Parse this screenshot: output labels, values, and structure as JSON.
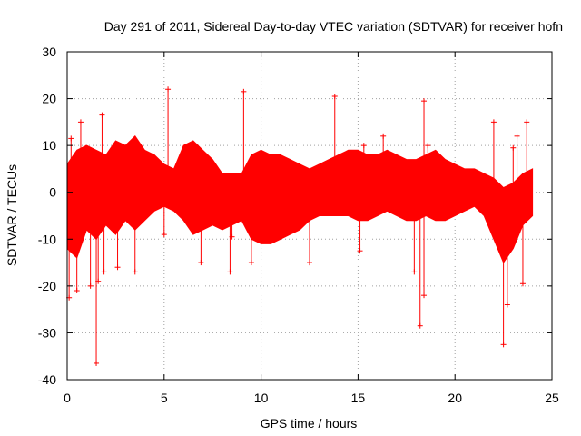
{
  "chart_data": {
    "type": "scatter",
    "title": "Day 291 of 2011, Sidereal Day-to-day VTEC variation (SDTVAR) for receiver hofn",
    "xlabel": "GPS time / hours",
    "ylabel": "SDTVAR / TECUs",
    "xlim": [
      0,
      25
    ],
    "ylim": [
      -40,
      30
    ],
    "x_ticks": [
      0,
      5,
      10,
      15,
      20,
      25
    ],
    "y_ticks": [
      -40,
      -30,
      -20,
      -10,
      0,
      10,
      20,
      30
    ],
    "grid": true,
    "series_color": "#ff0000",
    "envelope": {
      "x": [
        0.0,
        0.5,
        1.0,
        1.5,
        2.0,
        2.5,
        3.0,
        3.5,
        4.0,
        4.5,
        5.0,
        5.5,
        6.0,
        6.5,
        7.0,
        7.5,
        8.0,
        9.0,
        9.5,
        10.0,
        10.5,
        11.0,
        11.5,
        12.0,
        12.5,
        13.0,
        13.5,
        14.0,
        14.5,
        15.0,
        15.5,
        16.0,
        16.5,
        17.0,
        17.5,
        18.0,
        18.5,
        19.0,
        19.5,
        20.0,
        20.5,
        21.0,
        21.5,
        22.0,
        22.5,
        23.0,
        23.5,
        24.0
      ],
      "upper": [
        6,
        9,
        10,
        9,
        8,
        11,
        10,
        12,
        9,
        8,
        6,
        5,
        10,
        11,
        9,
        7,
        4,
        4,
        8,
        9,
        8,
        8,
        7,
        6,
        5,
        6,
        7,
        8,
        9,
        9,
        8,
        8,
        9,
        8,
        7,
        7,
        8,
        9,
        7,
        6,
        5,
        5,
        4,
        3,
        1,
        2,
        4,
        5
      ],
      "lower": [
        -12,
        -14,
        -8,
        -10,
        -7,
        -9,
        -6,
        -8,
        -6,
        -4,
        -3,
        -4,
        -6,
        -9,
        -8,
        -7,
        -8,
        -6,
        -10,
        -11,
        -11,
        -10,
        -9,
        -8,
        -6,
        -5,
        -5,
        -5,
        -5,
        -6,
        -6,
        -5,
        -4,
        -5,
        -6,
        -6,
        -5,
        -6,
        -6,
        -5,
        -4,
        -3,
        -5,
        -10,
        -15,
        -12,
        -7,
        -5
      ]
    },
    "outliers": [
      {
        "x": 0.1,
        "y": -22.5
      },
      {
        "x": 0.2,
        "y": 11.5
      },
      {
        "x": 0.5,
        "y": -21
      },
      {
        "x": 0.7,
        "y": 15
      },
      {
        "x": 1.2,
        "y": -20
      },
      {
        "x": 1.5,
        "y": -36.5
      },
      {
        "x": 1.6,
        "y": -19
      },
      {
        "x": 1.8,
        "y": 16.5
      },
      {
        "x": 1.9,
        "y": -17
      },
      {
        "x": 2.6,
        "y": -16
      },
      {
        "x": 3.5,
        "y": -17
      },
      {
        "x": 5.2,
        "y": 22
      },
      {
        "x": 5.0,
        "y": -9
      },
      {
        "x": 6.9,
        "y": -15
      },
      {
        "x": 8.4,
        "y": -17
      },
      {
        "x": 8.5,
        "y": -9.5
      },
      {
        "x": 9.1,
        "y": 21.5
      },
      {
        "x": 9.5,
        "y": -15
      },
      {
        "x": 9.6,
        "y": 4
      },
      {
        "x": 12.5,
        "y": -15
      },
      {
        "x": 13.8,
        "y": 20.5
      },
      {
        "x": 15.1,
        "y": -12.5
      },
      {
        "x": 15.3,
        "y": 10
      },
      {
        "x": 16.3,
        "y": 12
      },
      {
        "x": 17.9,
        "y": -17
      },
      {
        "x": 18.2,
        "y": -28.5
      },
      {
        "x": 18.4,
        "y": -22
      },
      {
        "x": 18.4,
        "y": 19.5
      },
      {
        "x": 18.6,
        "y": 10
      },
      {
        "x": 22.0,
        "y": 15
      },
      {
        "x": 22.5,
        "y": -32.5
      },
      {
        "x": 22.7,
        "y": -24
      },
      {
        "x": 23.0,
        "y": 9.5
      },
      {
        "x": 23.5,
        "y": -19.5
      },
      {
        "x": 23.7,
        "y": 15
      },
      {
        "x": 23.2,
        "y": 12
      }
    ]
  }
}
